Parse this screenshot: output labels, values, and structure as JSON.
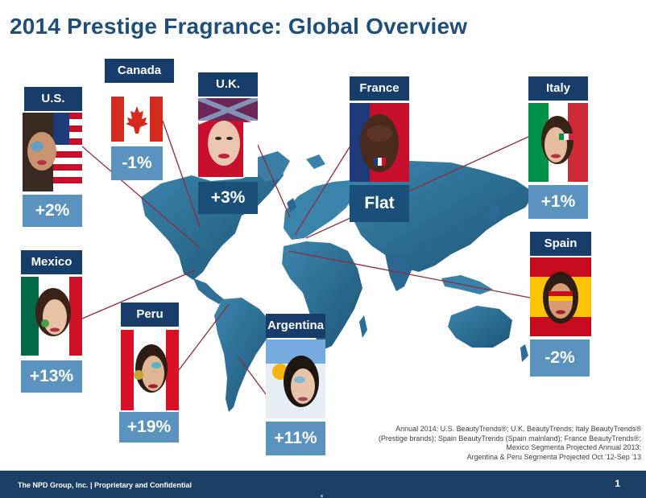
{
  "title": "2014 Prestige Fragrance: Global Overview",
  "markets": [
    {
      "country": "U.S.",
      "change": "+2%",
      "flag": "usa-flag-face-photo"
    },
    {
      "country": "Canada",
      "change": "-1%",
      "flag": "canada-flag"
    },
    {
      "country": "U.K.",
      "change": "+3%",
      "flag": "uk-flag-face-photo"
    },
    {
      "country": "France",
      "change": "Flat",
      "flag": "france-flag-face-photo"
    },
    {
      "country": "Italy",
      "change": "+1%",
      "flag": "italy-flag-face-photo"
    },
    {
      "country": "Spain",
      "change": "-2%",
      "flag": "spain-flag-face-photo"
    },
    {
      "country": "Mexico",
      "change": "+13%",
      "flag": "mexico-flag-face-photo"
    },
    {
      "country": "Peru",
      "change": "+19%",
      "flag": "peru-flag-face-photo"
    },
    {
      "country": "Argentina",
      "change": "+11%",
      "flag": "argentina-flag-face-photo"
    }
  ],
  "source_lines": [
    "Annual 2014:  U.S. BeautyTrends®; U.K. BeautyTrends; Italy BeautyTrends®",
    "(Prestige brands); Spain BeautyTrends (Spain mainland); France BeautyTrends®;",
    "Mexico Segmenta Projected Annual 2013;",
    "Argentina & Peru Segmenta Projected Oct '12-Sep '13"
  ],
  "footer": {
    "company": "The NPD Group, Inc.  |  Proprietary and Confidential",
    "page": "1"
  },
  "colors": {
    "title": "#1f4e79",
    "label_bg": "#173e6b",
    "value_bg": "#5b93bf",
    "map": "#2e6f96",
    "connector": "#8b2c3c",
    "footer": "#1c3f66"
  }
}
